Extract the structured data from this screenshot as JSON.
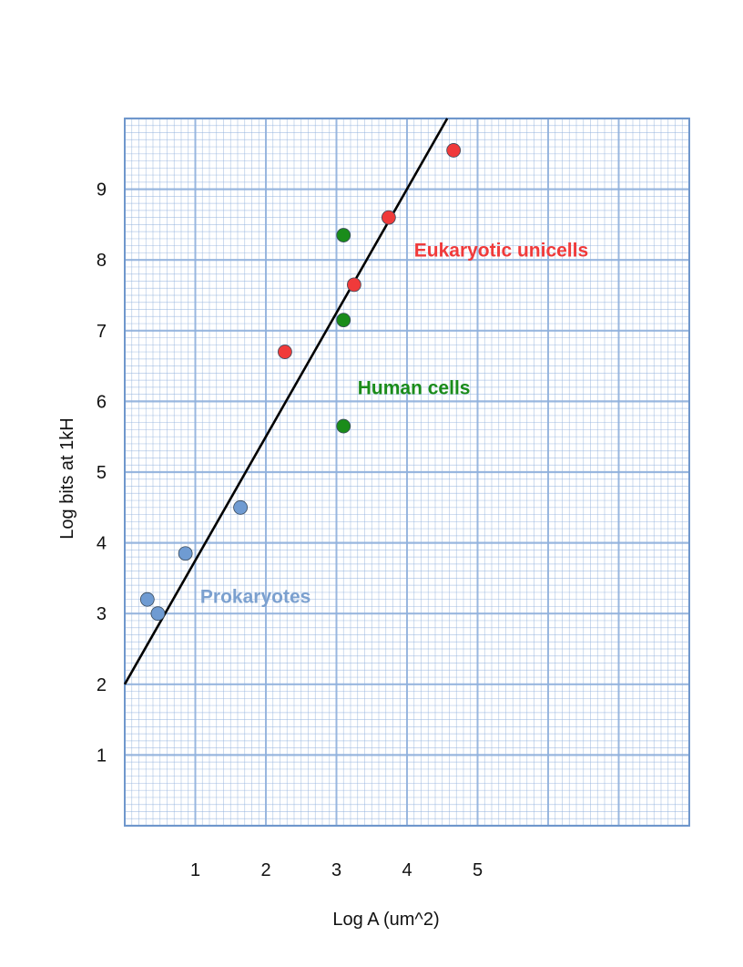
{
  "chart_data": {
    "type": "scatter",
    "xlabel": "Log A (um^2)",
    "ylabel": "Log bits at 1kH",
    "xlim": [
      0,
      8
    ],
    "ylim": [
      0,
      10
    ],
    "x_ticks": [
      1,
      2,
      3,
      4,
      5
    ],
    "x_tick_labels": [
      "1",
      "2",
      "3",
      "4",
      "5"
    ],
    "y_ticks": [
      1,
      2,
      3,
      4,
      5,
      6,
      7,
      8,
      9
    ],
    "y_tick_labels": [
      "1",
      "2",
      "3",
      "4",
      "5",
      "6",
      "7",
      "8",
      "9"
    ],
    "grid": true,
    "grid_color": "#8fb0dc",
    "legend": "none",
    "series": [
      {
        "name": "Prokaryotes",
        "color": "#6f9bd2",
        "points": [
          {
            "x": 0.32,
            "y": 3.2
          },
          {
            "x": 0.47,
            "y": 3.0
          },
          {
            "x": 0.86,
            "y": 3.85
          },
          {
            "x": 1.64,
            "y": 4.5
          }
        ]
      },
      {
        "name": "Human cells",
        "color": "#1a8c1a",
        "points": [
          {
            "x": 3.1,
            "y": 8.35
          },
          {
            "x": 3.1,
            "y": 7.15
          },
          {
            "x": 3.1,
            "y": 5.65
          }
        ]
      },
      {
        "name": "Eukaryotic unicells",
        "color": "#f03a3a",
        "points": [
          {
            "x": 2.27,
            "y": 6.7
          },
          {
            "x": 3.25,
            "y": 7.65
          },
          {
            "x": 3.74,
            "y": 8.6
          },
          {
            "x": 4.66,
            "y": 9.55
          }
        ]
      }
    ],
    "fit_line": {
      "x": [
        0,
        4.57
      ],
      "y": [
        2.0,
        10.0
      ],
      "color": "#000000"
    },
    "annotations": [
      {
        "text": "Eukaryotic unicells",
        "x": 4.1,
        "y": 8.05,
        "color": "#f03a3a"
      },
      {
        "text": "Human cells",
        "x": 3.3,
        "y": 6.1,
        "color": "#1a8c1a"
      },
      {
        "text": "Prokaryotes",
        "x": 1.07,
        "y": 3.15,
        "color": "#7ba0cf"
      }
    ]
  }
}
